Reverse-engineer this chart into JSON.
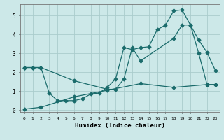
{
  "xlabel": "Humidex (Indice chaleur)",
  "background_color": "#cce8e8",
  "grid_color": "#aacccc",
  "line_color": "#1a6b6b",
  "xlim": [
    -0.5,
    23.5
  ],
  "ylim": [
    -0.1,
    5.6
  ],
  "xticks": [
    0,
    1,
    2,
    3,
    4,
    5,
    6,
    7,
    8,
    9,
    10,
    11,
    12,
    13,
    14,
    15,
    16,
    17,
    18,
    19,
    20,
    21,
    22,
    23
  ],
  "yticks": [
    0,
    1,
    2,
    3,
    4,
    5
  ],
  "line1_x": [
    0,
    1,
    2,
    3,
    4,
    5,
    6,
    7,
    8,
    9,
    10,
    11,
    12,
    13,
    14,
    15,
    16,
    17,
    18,
    19,
    20,
    21,
    22,
    23
  ],
  "line1_y": [
    2.25,
    2.25,
    2.25,
    0.9,
    0.5,
    0.5,
    0.5,
    0.6,
    0.85,
    0.9,
    1.2,
    1.65,
    3.3,
    3.2,
    3.3,
    3.35,
    4.25,
    4.5,
    5.25,
    5.3,
    4.5,
    3.7,
    3.05,
    2.1
  ],
  "line2_x": [
    0,
    1,
    2,
    6,
    10,
    11,
    12,
    13,
    14,
    18,
    19,
    20,
    21,
    22,
    23
  ],
  "line2_y": [
    2.25,
    2.25,
    2.25,
    1.55,
    1.1,
    1.1,
    1.65,
    3.3,
    2.6,
    3.8,
    4.5,
    4.5,
    3.0,
    1.35,
    1.35
  ],
  "line3_x": [
    0,
    2,
    6,
    10,
    14,
    18,
    22,
    23
  ],
  "line3_y": [
    0.05,
    0.15,
    0.7,
    1.05,
    1.4,
    1.2,
    1.35,
    1.35
  ]
}
